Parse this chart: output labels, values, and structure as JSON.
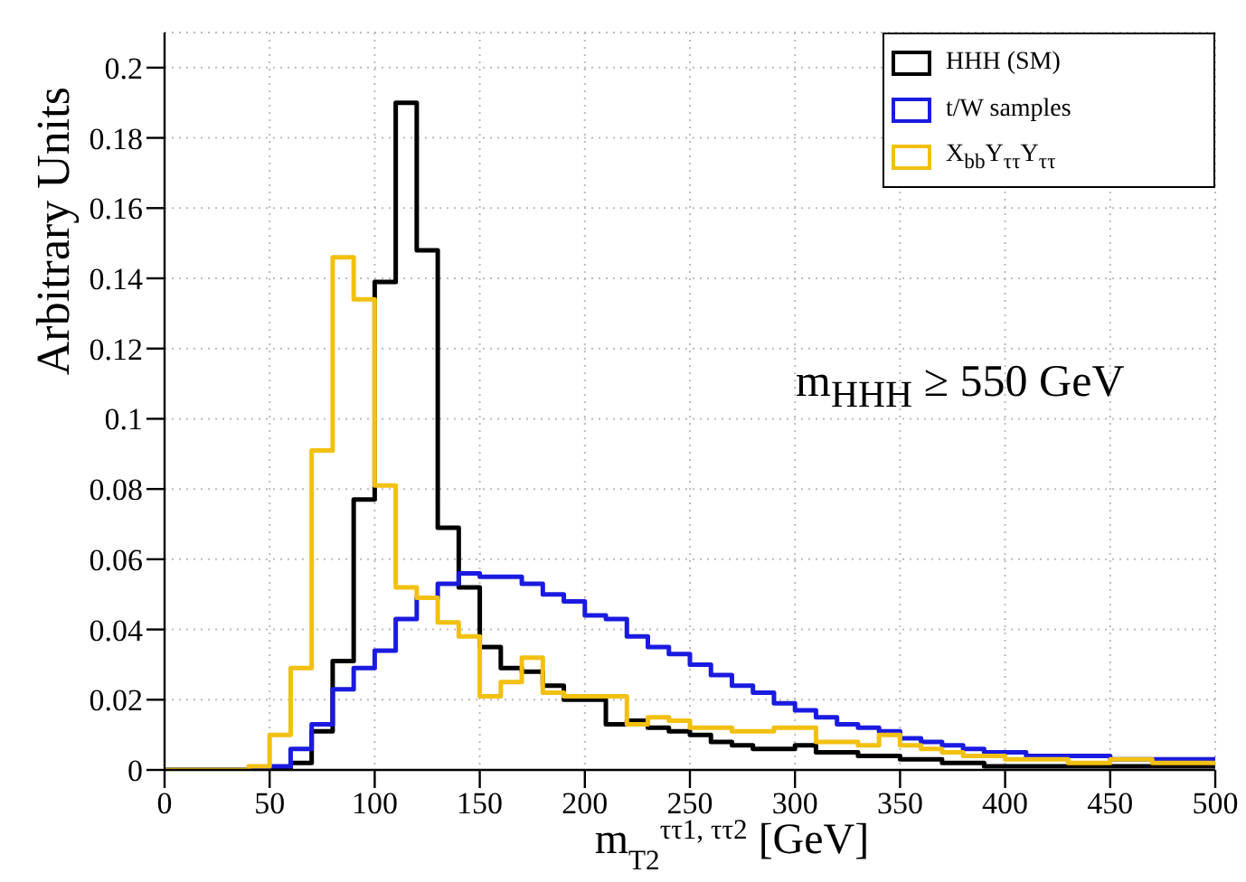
{
  "chart_data": {
    "type": "histogram",
    "xlabel": "m$_{T2}$$^{ττ1, ττ2}$ [GeV]",
    "ylabel": "Arbitrary Units",
    "annotations": [
      "m$_{HHH}$ ≥ 550 GeV"
    ],
    "bins": [
      0,
      10,
      20,
      30,
      40,
      50,
      60,
      70,
      80,
      90,
      100,
      110,
      120,
      130,
      140,
      150,
      160,
      170,
      180,
      190,
      200,
      210,
      220,
      230,
      240,
      250,
      260,
      270,
      280,
      290,
      300,
      310,
      320,
      330,
      340,
      350,
      360,
      370,
      380,
      390,
      400,
      410,
      420,
      430,
      440,
      450,
      460,
      470,
      480,
      490,
      500
    ],
    "series": [
      {
        "name": "HHH (SM)",
        "color": "#000000",
        "values": [
          0,
          0,
          0,
          0,
          0,
          0,
          0.002,
          0.011,
          0.031,
          0.077,
          0.139,
          0.19,
          0.148,
          0.069,
          0.052,
          0.035,
          0.029,
          0.028,
          0.024,
          0.02,
          0.02,
          0.013,
          0.014,
          0.012,
          0.011,
          0.01,
          0.008,
          0.007,
          0.006,
          0.006,
          0.007,
          0.005,
          0.005,
          0.004,
          0.004,
          0.003,
          0.003,
          0.002,
          0.002,
          0.001,
          0.001,
          0.001,
          0.001,
          0.001,
          0.001,
          0.001,
          0.001,
          0.001,
          0.001,
          0.001
        ]
      },
      {
        "name": "t/W samples",
        "color": "#1a1ae0",
        "values": [
          0,
          0,
          0,
          0,
          0,
          0.001,
          0.006,
          0.013,
          0.023,
          0.029,
          0.034,
          0.043,
          0.049,
          0.053,
          0.056,
          0.055,
          0.055,
          0.053,
          0.05,
          0.048,
          0.044,
          0.043,
          0.038,
          0.035,
          0.033,
          0.03,
          0.027,
          0.024,
          0.022,
          0.019,
          0.017,
          0.015,
          0.013,
          0.012,
          0.011,
          0.009,
          0.008,
          0.007,
          0.006,
          0.005,
          0.005,
          0.004,
          0.004,
          0.004,
          0.004,
          0.003,
          0.003,
          0.003,
          0.003,
          0.003
        ]
      },
      {
        "name": "X$_{bb}$Y$_{ττ}$Y$_{ττ}$",
        "color": "#f2c010",
        "values": [
          0,
          0,
          0,
          0,
          0.001,
          0.01,
          0.029,
          0.091,
          0.146,
          0.134,
          0.081,
          0.052,
          0.049,
          0.042,
          0.038,
          0.021,
          0.025,
          0.032,
          0.022,
          0.021,
          0.021,
          0.021,
          0.013,
          0.015,
          0.014,
          0.012,
          0.012,
          0.011,
          0.011,
          0.012,
          0.012,
          0.008,
          0.008,
          0.007,
          0.01,
          0.007,
          0.006,
          0.005,
          0.004,
          0.004,
          0.003,
          0.003,
          0.003,
          0.002,
          0.002,
          0.003,
          0.003,
          0.002,
          0.002,
          0.002
        ]
      }
    ],
    "xlim": [
      0,
      500
    ],
    "xticks": [
      0,
      50,
      100,
      150,
      200,
      250,
      300,
      350,
      400,
      450,
      500
    ],
    "ylim": [
      0,
      0.21
    ],
    "yticks": [
      0,
      0.02,
      0.04,
      0.06,
      0.08,
      0.1,
      0.12,
      0.14,
      0.16,
      0.18,
      0.2
    ],
    "grid": true,
    "legend": "top right"
  }
}
